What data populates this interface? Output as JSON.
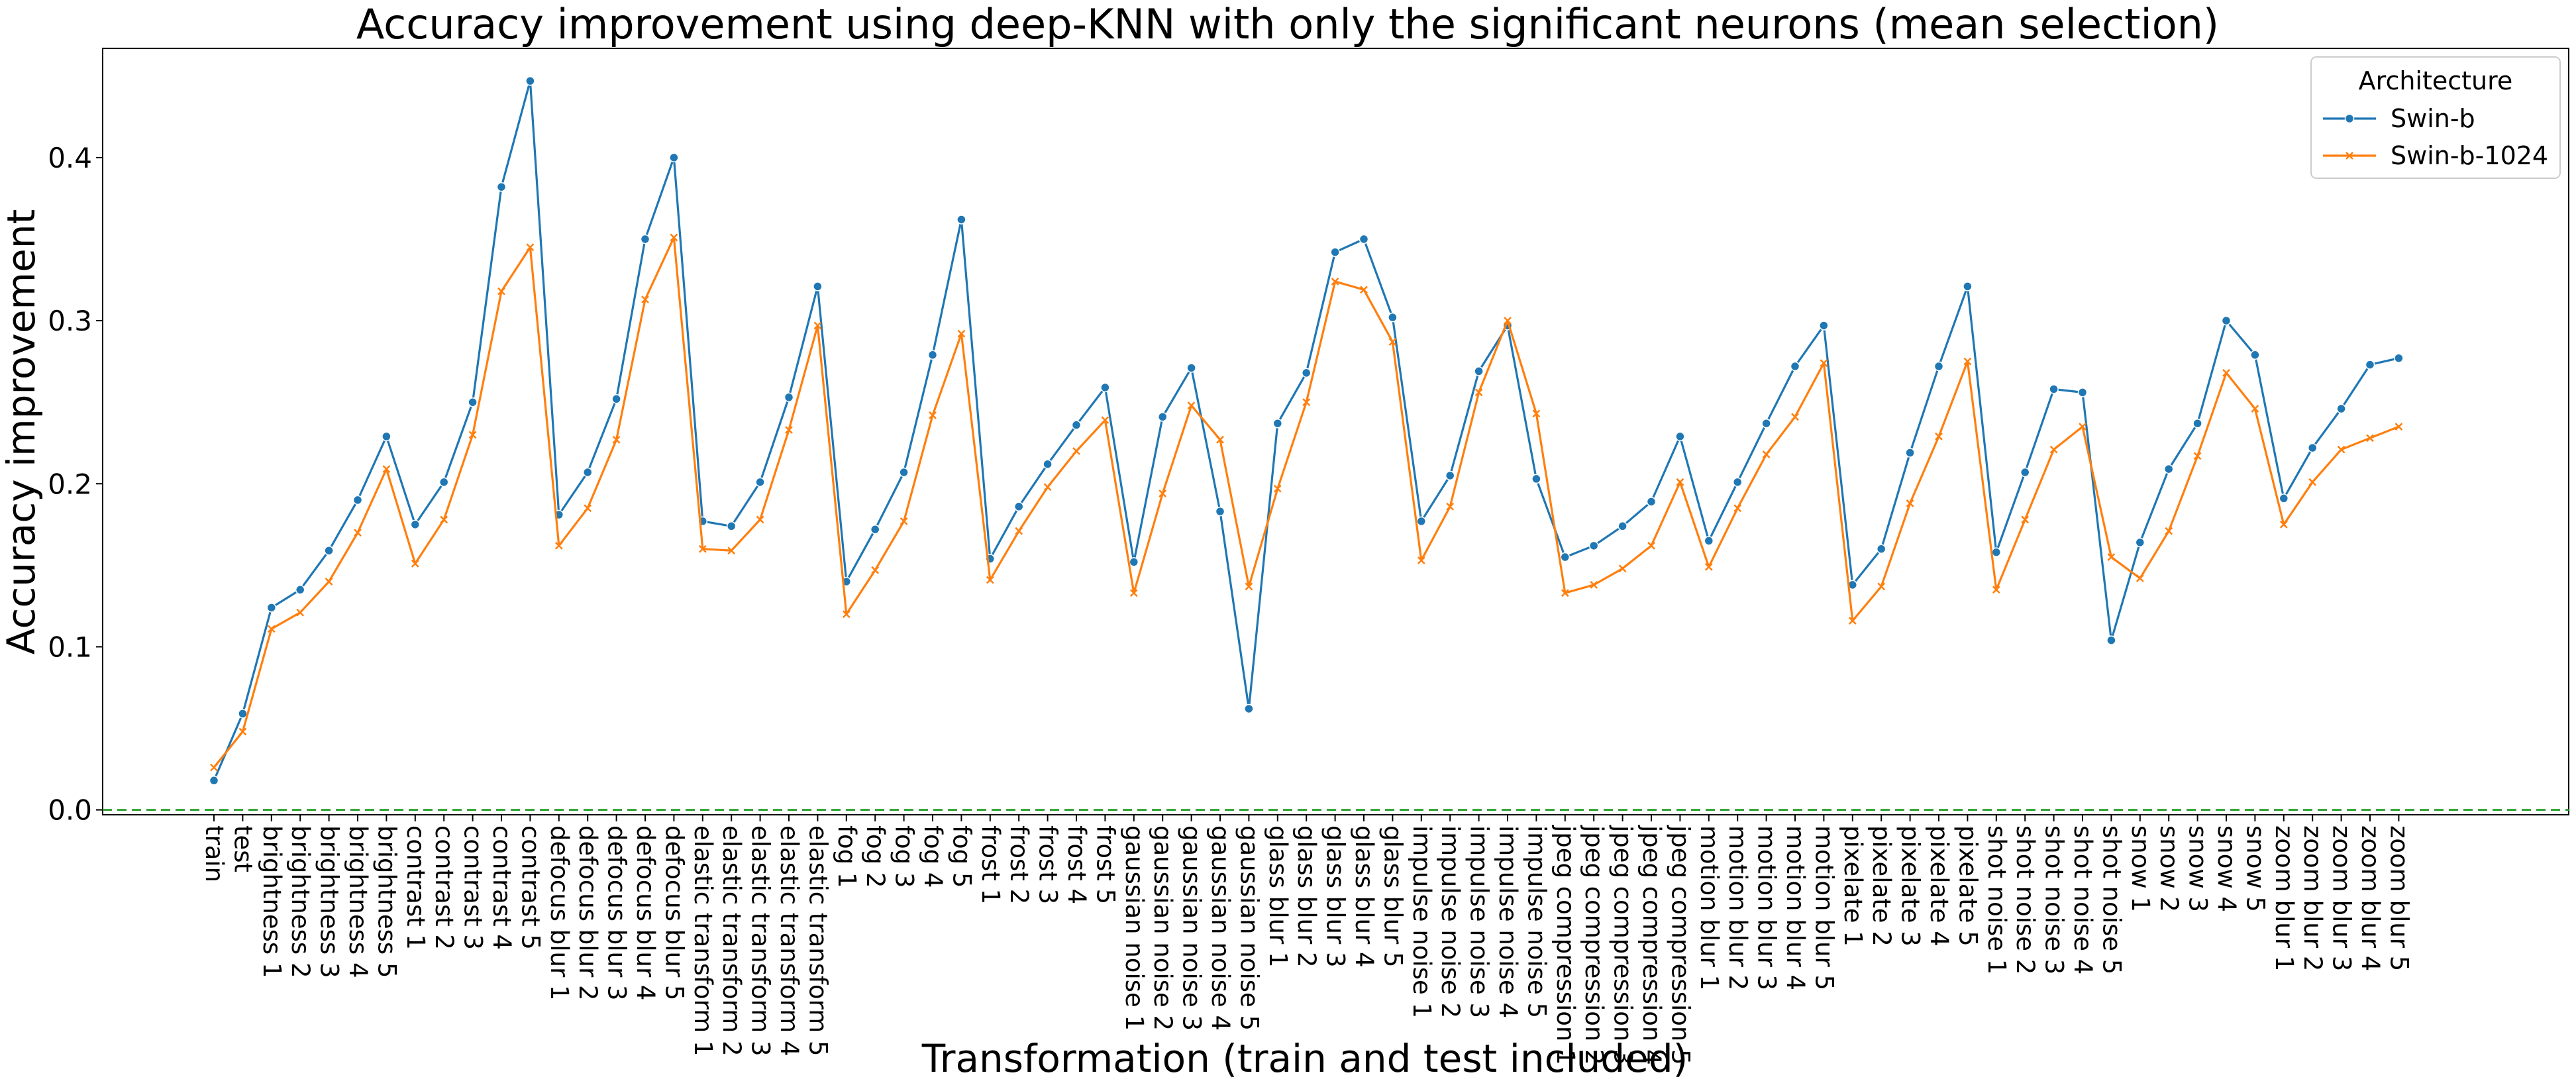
{
  "chart_data": {
    "type": "line",
    "title": "Accuracy improvement using deep-KNN with only the significant neurons (mean selection)",
    "xlabel": "Transformation (train and test included)",
    "ylabel": "Accuracy improvement",
    "ylim": [
      -0.003,
      0.467
    ],
    "yticks": [
      0.0,
      0.1,
      0.2,
      0.3,
      0.4
    ],
    "ytick_labels": [
      "0.0",
      "0.1",
      "0.2",
      "0.3",
      "0.4"
    ],
    "grid": false,
    "reference_line": {
      "y": 0.0,
      "color": "#2ca02c",
      "style": "dashed"
    },
    "legend": {
      "title": "Architecture",
      "placement": "top-right"
    },
    "categories": [
      "train",
      "test",
      "brightness 1",
      "brightness 2",
      "brightness 3",
      "brightness 4",
      "brightness 5",
      "contrast 1",
      "contrast 2",
      "contrast 3",
      "contrast 4",
      "contrast 5",
      "defocus blur 1",
      "defocus blur 2",
      "defocus blur 3",
      "defocus blur 4",
      "defocus blur 5",
      "elastic transform 1",
      "elastic transform 2",
      "elastic transform 3",
      "elastic transform 4",
      "elastic transform 5",
      "fog 1",
      "fog 2",
      "fog 3",
      "fog 4",
      "fog 5",
      "frost 1",
      "frost 2",
      "frost 3",
      "frost 4",
      "frost 5",
      "gaussian noise 1",
      "gaussian noise 2",
      "gaussian noise 3",
      "gaussian noise 4",
      "gaussian noise 5",
      "glass blur 1",
      "glass blur 2",
      "glass blur 3",
      "glass blur 4",
      "glass blur 5",
      "impulse noise 1",
      "impulse noise 2",
      "impulse noise 3",
      "impulse noise 4",
      "impulse noise 5",
      "jpeg compression 1",
      "jpeg compression 2",
      "jpeg compression 3",
      "jpeg compression 4",
      "jpeg compression 5",
      "motion blur 1",
      "motion blur 2",
      "motion blur 3",
      "motion blur 4",
      "motion blur 5",
      "pixelate 1",
      "pixelate 2",
      "pixelate 3",
      "pixelate 4",
      "pixelate 5",
      "shot noise 1",
      "shot noise 2",
      "shot noise 3",
      "shot noise 4",
      "shot noise 5",
      "snow 1",
      "snow 2",
      "snow 3",
      "snow 4",
      "snow 5",
      "zoom blur 1",
      "zoom blur 2",
      "zoom blur 3",
      "zoom blur 4",
      "zoom blur 5"
    ],
    "series": [
      {
        "name": "Swin-b",
        "color": "#1f77b4",
        "marker": "circle",
        "values": [
          0.018,
          0.059,
          0.124,
          0.135,
          0.159,
          0.19,
          0.229,
          0.175,
          0.201,
          0.25,
          0.382,
          0.447,
          0.181,
          0.207,
          0.252,
          0.35,
          0.4,
          0.177,
          0.174,
          0.201,
          0.253,
          0.321,
          0.14,
          0.172,
          0.207,
          0.279,
          0.362,
          0.154,
          0.186,
          0.212,
          0.236,
          0.259,
          0.152,
          0.241,
          0.271,
          0.183,
          0.062,
          0.237,
          0.268,
          0.342,
          0.35,
          0.302,
          0.177,
          0.205,
          0.269,
          0.297,
          0.203,
          0.155,
          0.162,
          0.174,
          0.189,
          0.229,
          0.165,
          0.201,
          0.237,
          0.272,
          0.297,
          0.138,
          0.16,
          0.219,
          0.272,
          0.321,
          0.158,
          0.207,
          0.258,
          0.256,
          0.104,
          0.164,
          0.209,
          0.237,
          0.3,
          0.279,
          0.191,
          0.222,
          0.246,
          0.273,
          0.277
        ]
      },
      {
        "name": "Swin-b-1024",
        "color": "#ff7f0e",
        "marker": "x",
        "values": [
          0.026,
          0.048,
          0.111,
          0.121,
          0.14,
          0.17,
          0.209,
          0.151,
          0.178,
          0.23,
          0.318,
          0.345,
          0.162,
          0.185,
          0.227,
          0.313,
          0.351,
          0.16,
          0.159,
          0.178,
          0.233,
          0.297,
          0.12,
          0.147,
          0.177,
          0.242,
          0.292,
          0.141,
          0.171,
          0.198,
          0.22,
          0.239,
          0.133,
          0.194,
          0.248,
          0.227,
          0.137,
          0.197,
          0.25,
          0.324,
          0.319,
          0.287,
          0.153,
          0.186,
          0.256,
          0.3,
          0.243,
          0.133,
          0.138,
          0.148,
          0.162,
          0.201,
          0.149,
          0.185,
          0.218,
          0.241,
          0.274,
          0.116,
          0.137,
          0.188,
          0.229,
          0.275,
          0.135,
          0.178,
          0.221,
          0.235,
          0.155,
          0.142,
          0.171,
          0.217,
          0.268,
          0.246,
          0.175,
          0.201,
          0.221,
          0.228,
          0.235
        ]
      }
    ]
  }
}
